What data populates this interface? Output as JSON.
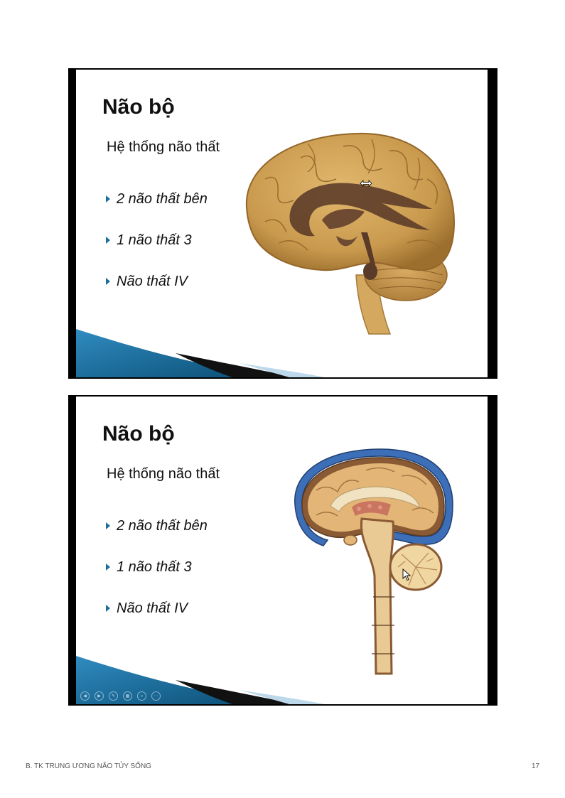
{
  "slides": [
    {
      "title": "Não bộ",
      "subtitle": "Hệ thống não thất",
      "bullets": [
        "2 não thất bên",
        "1 não thất 3",
        "Não thất IV"
      ],
      "illustration": "brain-ventricles-lateral-view",
      "cursor": "resize-horizontal-icon"
    },
    {
      "title": "Não bộ",
      "subtitle": "Hệ thống não thất",
      "bullets": [
        "2 não thất bên",
        "1 não thất 3",
        "Não thất IV"
      ],
      "illustration": "brain-sagittal-section",
      "cursor": "arrow-pointer-icon",
      "controls": [
        "previous-icon",
        "next-icon",
        "pen-icon",
        "slides-grid-icon",
        "zoom-icon",
        "more-icon"
      ]
    }
  ],
  "footer": {
    "left": "B. TK TRUNG ƯƠNG NÃO TỦY SỐNG",
    "right": "17"
  },
  "colors": {
    "accent_blue": "#1b6f9a",
    "brain_tan": "#c99a4e",
    "ventricle_brown": "#5a3a28",
    "meninges_blue": "#3d6fb8"
  }
}
